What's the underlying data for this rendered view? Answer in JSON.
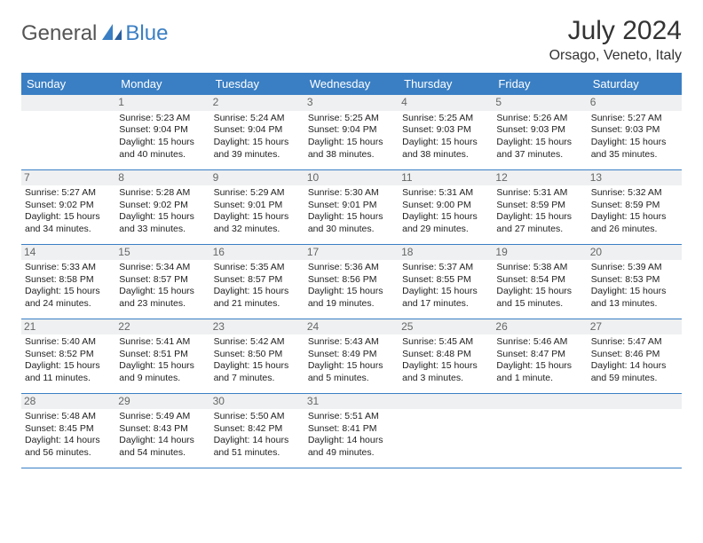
{
  "brand": {
    "general": "General",
    "blue": "Blue"
  },
  "header": {
    "title": "July 2024",
    "location": "Orsago, Veneto, Italy"
  },
  "colors": {
    "accent": "#3a7fc4",
    "daybg": "#eef0f1"
  },
  "weekdays": [
    "Sunday",
    "Monday",
    "Tuesday",
    "Wednesday",
    "Thursday",
    "Friday",
    "Saturday"
  ],
  "weeks": [
    [
      null,
      {
        "n": "1",
        "sr": "Sunrise: 5:23 AM",
        "ss": "Sunset: 9:04 PM",
        "d1": "Daylight: 15 hours",
        "d2": "and 40 minutes."
      },
      {
        "n": "2",
        "sr": "Sunrise: 5:24 AM",
        "ss": "Sunset: 9:04 PM",
        "d1": "Daylight: 15 hours",
        "d2": "and 39 minutes."
      },
      {
        "n": "3",
        "sr": "Sunrise: 5:25 AM",
        "ss": "Sunset: 9:04 PM",
        "d1": "Daylight: 15 hours",
        "d2": "and 38 minutes."
      },
      {
        "n": "4",
        "sr": "Sunrise: 5:25 AM",
        "ss": "Sunset: 9:03 PM",
        "d1": "Daylight: 15 hours",
        "d2": "and 38 minutes."
      },
      {
        "n": "5",
        "sr": "Sunrise: 5:26 AM",
        "ss": "Sunset: 9:03 PM",
        "d1": "Daylight: 15 hours",
        "d2": "and 37 minutes."
      },
      {
        "n": "6",
        "sr": "Sunrise: 5:27 AM",
        "ss": "Sunset: 9:03 PM",
        "d1": "Daylight: 15 hours",
        "d2": "and 35 minutes."
      }
    ],
    [
      {
        "n": "7",
        "sr": "Sunrise: 5:27 AM",
        "ss": "Sunset: 9:02 PM",
        "d1": "Daylight: 15 hours",
        "d2": "and 34 minutes."
      },
      {
        "n": "8",
        "sr": "Sunrise: 5:28 AM",
        "ss": "Sunset: 9:02 PM",
        "d1": "Daylight: 15 hours",
        "d2": "and 33 minutes."
      },
      {
        "n": "9",
        "sr": "Sunrise: 5:29 AM",
        "ss": "Sunset: 9:01 PM",
        "d1": "Daylight: 15 hours",
        "d2": "and 32 minutes."
      },
      {
        "n": "10",
        "sr": "Sunrise: 5:30 AM",
        "ss": "Sunset: 9:01 PM",
        "d1": "Daylight: 15 hours",
        "d2": "and 30 minutes."
      },
      {
        "n": "11",
        "sr": "Sunrise: 5:31 AM",
        "ss": "Sunset: 9:00 PM",
        "d1": "Daylight: 15 hours",
        "d2": "and 29 minutes."
      },
      {
        "n": "12",
        "sr": "Sunrise: 5:31 AM",
        "ss": "Sunset: 8:59 PM",
        "d1": "Daylight: 15 hours",
        "d2": "and 27 minutes."
      },
      {
        "n": "13",
        "sr": "Sunrise: 5:32 AM",
        "ss": "Sunset: 8:59 PM",
        "d1": "Daylight: 15 hours",
        "d2": "and 26 minutes."
      }
    ],
    [
      {
        "n": "14",
        "sr": "Sunrise: 5:33 AM",
        "ss": "Sunset: 8:58 PM",
        "d1": "Daylight: 15 hours",
        "d2": "and 24 minutes."
      },
      {
        "n": "15",
        "sr": "Sunrise: 5:34 AM",
        "ss": "Sunset: 8:57 PM",
        "d1": "Daylight: 15 hours",
        "d2": "and 23 minutes."
      },
      {
        "n": "16",
        "sr": "Sunrise: 5:35 AM",
        "ss": "Sunset: 8:57 PM",
        "d1": "Daylight: 15 hours",
        "d2": "and 21 minutes."
      },
      {
        "n": "17",
        "sr": "Sunrise: 5:36 AM",
        "ss": "Sunset: 8:56 PM",
        "d1": "Daylight: 15 hours",
        "d2": "and 19 minutes."
      },
      {
        "n": "18",
        "sr": "Sunrise: 5:37 AM",
        "ss": "Sunset: 8:55 PM",
        "d1": "Daylight: 15 hours",
        "d2": "and 17 minutes."
      },
      {
        "n": "19",
        "sr": "Sunrise: 5:38 AM",
        "ss": "Sunset: 8:54 PM",
        "d1": "Daylight: 15 hours",
        "d2": "and 15 minutes."
      },
      {
        "n": "20",
        "sr": "Sunrise: 5:39 AM",
        "ss": "Sunset: 8:53 PM",
        "d1": "Daylight: 15 hours",
        "d2": "and 13 minutes."
      }
    ],
    [
      {
        "n": "21",
        "sr": "Sunrise: 5:40 AM",
        "ss": "Sunset: 8:52 PM",
        "d1": "Daylight: 15 hours",
        "d2": "and 11 minutes."
      },
      {
        "n": "22",
        "sr": "Sunrise: 5:41 AM",
        "ss": "Sunset: 8:51 PM",
        "d1": "Daylight: 15 hours",
        "d2": "and 9 minutes."
      },
      {
        "n": "23",
        "sr": "Sunrise: 5:42 AM",
        "ss": "Sunset: 8:50 PM",
        "d1": "Daylight: 15 hours",
        "d2": "and 7 minutes."
      },
      {
        "n": "24",
        "sr": "Sunrise: 5:43 AM",
        "ss": "Sunset: 8:49 PM",
        "d1": "Daylight: 15 hours",
        "d2": "and 5 minutes."
      },
      {
        "n": "25",
        "sr": "Sunrise: 5:45 AM",
        "ss": "Sunset: 8:48 PM",
        "d1": "Daylight: 15 hours",
        "d2": "and 3 minutes."
      },
      {
        "n": "26",
        "sr": "Sunrise: 5:46 AM",
        "ss": "Sunset: 8:47 PM",
        "d1": "Daylight: 15 hours",
        "d2": "and 1 minute."
      },
      {
        "n": "27",
        "sr": "Sunrise: 5:47 AM",
        "ss": "Sunset: 8:46 PM",
        "d1": "Daylight: 14 hours",
        "d2": "and 59 minutes."
      }
    ],
    [
      {
        "n": "28",
        "sr": "Sunrise: 5:48 AM",
        "ss": "Sunset: 8:45 PM",
        "d1": "Daylight: 14 hours",
        "d2": "and 56 minutes."
      },
      {
        "n": "29",
        "sr": "Sunrise: 5:49 AM",
        "ss": "Sunset: 8:43 PM",
        "d1": "Daylight: 14 hours",
        "d2": "and 54 minutes."
      },
      {
        "n": "30",
        "sr": "Sunrise: 5:50 AM",
        "ss": "Sunset: 8:42 PM",
        "d1": "Daylight: 14 hours",
        "d2": "and 51 minutes."
      },
      {
        "n": "31",
        "sr": "Sunrise: 5:51 AM",
        "ss": "Sunset: 8:41 PM",
        "d1": "Daylight: 14 hours",
        "d2": "and 49 minutes."
      },
      null,
      null,
      null
    ]
  ]
}
